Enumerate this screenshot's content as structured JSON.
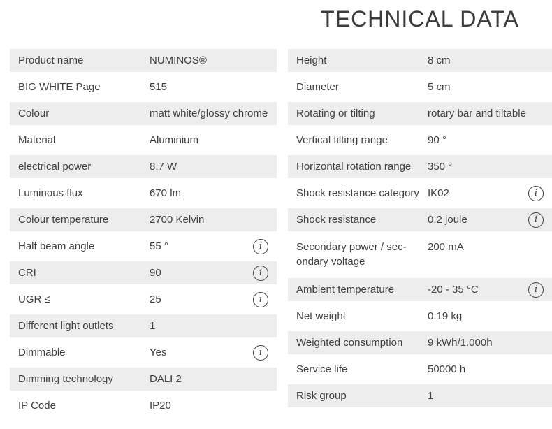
{
  "title": "TECHNICAL DATA",
  "colors": {
    "row_shaded_bg": "#ededed",
    "text": "#3f3f3e",
    "title": "#3c3c3b"
  },
  "info_icon": {
    "glyph": "i"
  },
  "left_table": {
    "rows": [
      {
        "label": "Product name",
        "value": "NUMINOS®",
        "shaded": true,
        "info": false
      },
      {
        "label": "BIG WHITE Page",
        "value": "515",
        "shaded": false,
        "info": false
      },
      {
        "label": "Colour",
        "value": "matt white/glossy chrome",
        "shaded": true,
        "info": false
      },
      {
        "label": "Material",
        "value": "Aluminium",
        "shaded": false,
        "info": false
      },
      {
        "label": "electrical power",
        "value": "8.7 W",
        "shaded": true,
        "info": false
      },
      {
        "label": "Luminous flux",
        "value": "670 lm",
        "shaded": false,
        "info": false
      },
      {
        "label": "Colour temperature",
        "value": "2700 Kelvin",
        "shaded": true,
        "info": false
      },
      {
        "label": "Half beam angle",
        "value": "55 °",
        "shaded": false,
        "info": true
      },
      {
        "label": "CRI",
        "value": "90",
        "shaded": true,
        "info": true
      },
      {
        "label": "UGR ≤",
        "value": "25",
        "shaded": false,
        "info": true
      },
      {
        "label": "Different light outlets",
        "value": "1",
        "shaded": true,
        "info": false
      },
      {
        "label": "Dimmable",
        "value": "Yes",
        "shaded": false,
        "info": true
      },
      {
        "label": "Dimming technology",
        "value": "DALI 2",
        "shaded": true,
        "info": false
      },
      {
        "label": "IP Code",
        "value": "IP20",
        "shaded": false,
        "info": false
      }
    ]
  },
  "right_table": {
    "rows": [
      {
        "label": "Height",
        "value": "8 cm",
        "shaded": true,
        "info": false
      },
      {
        "label": "Diameter",
        "value": "5 cm",
        "shaded": false,
        "info": false
      },
      {
        "label": "Rotating or tilting",
        "value": "rotary bar and tiltable",
        "shaded": true,
        "info": false
      },
      {
        "label": "Vertical tilting range",
        "value": "90 °",
        "shaded": false,
        "info": false
      },
      {
        "label": "Horizontal rotation range",
        "value": "350 °",
        "shaded": true,
        "info": false
      },
      {
        "label": "Shock resistance category",
        "value": "IK02",
        "shaded": false,
        "info": true
      },
      {
        "label": "Shock resistance",
        "value": "0.2 joule",
        "shaded": true,
        "info": true
      },
      {
        "label": "Secondary power / sec-\nondary voltage",
        "value": "200 mA",
        "shaded": false,
        "info": false,
        "tall": true
      },
      {
        "label": "Ambient temperature",
        "value": "-20 - 35 °C",
        "shaded": true,
        "info": true
      },
      {
        "label": "Net weight",
        "value": "0.19 kg",
        "shaded": false,
        "info": false
      },
      {
        "label": "Weighted consumption",
        "value": "9 kWh/1.000h",
        "shaded": true,
        "info": false
      },
      {
        "label": "Service life",
        "value": "50000 h",
        "shaded": false,
        "info": false
      },
      {
        "label": "Risk group",
        "value": "1",
        "shaded": true,
        "info": false
      }
    ]
  }
}
